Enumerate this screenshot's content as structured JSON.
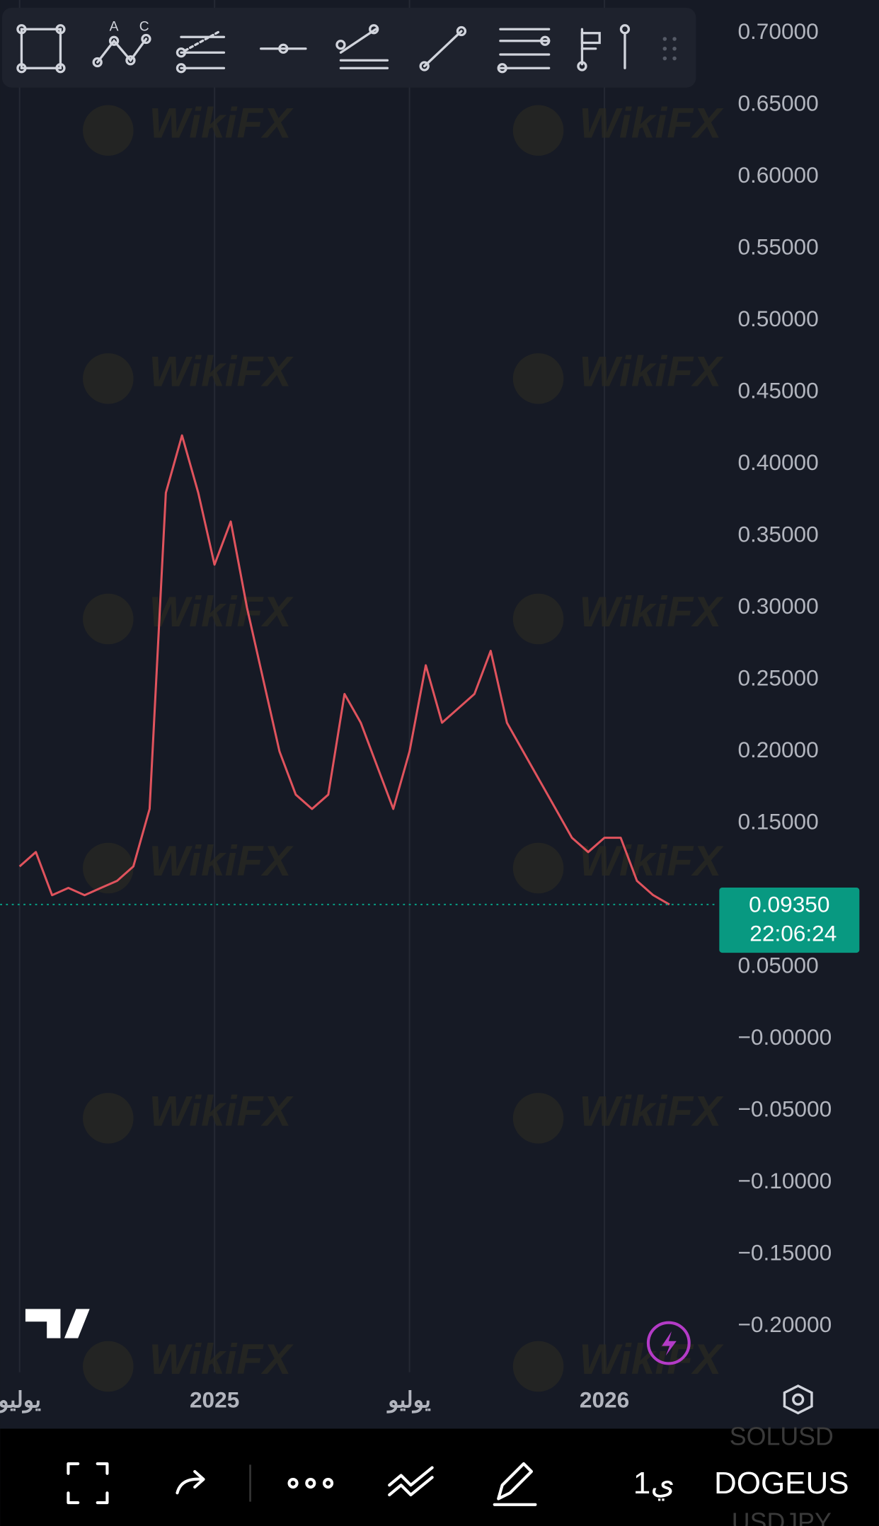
{
  "chart_data": {
    "type": "line",
    "categories": [
      "يوليو",
      null,
      null,
      null,
      null,
      null,
      null,
      null,
      null,
      null,
      null,
      null,
      "2025",
      null,
      null,
      null,
      null,
      null,
      null,
      null,
      null,
      null,
      null,
      null,
      "يوليو",
      null,
      null,
      null,
      null,
      null,
      null,
      null,
      null,
      null,
      null,
      null,
      "2026",
      null,
      null,
      null,
      null
    ],
    "series": [
      {
        "color": "#e0535d",
        "values": [
          0.12,
          0.13,
          0.1,
          0.105,
          0.1,
          0.105,
          0.11,
          0.12,
          0.16,
          0.38,
          0.42,
          0.38,
          0.33,
          0.36,
          0.3,
          0.25,
          0.2,
          0.17,
          0.16,
          0.17,
          0.24,
          0.22,
          0.19,
          0.16,
          0.2,
          0.26,
          0.22,
          0.23,
          0.24,
          0.27,
          0.22,
          0.2,
          0.18,
          0.16,
          0.14,
          0.13,
          0.14,
          0.14,
          0.11,
          0.1,
          0.0935
        ]
      }
    ],
    "ylim": [
      -0.232,
      0.723
    ],
    "yticks": [
      {
        "value": 0.7,
        "label": "0.70000"
      },
      {
        "value": 0.65,
        "label": "0.65000"
      },
      {
        "value": 0.6,
        "label": "0.60000"
      },
      {
        "value": 0.55,
        "label": "0.55000"
      },
      {
        "value": 0.5,
        "label": "0.50000"
      },
      {
        "value": 0.45,
        "label": "0.45000"
      },
      {
        "value": 0.4,
        "label": "0.40000"
      },
      {
        "value": 0.35,
        "label": "0.35000"
      },
      {
        "value": 0.3,
        "label": "0.30000"
      },
      {
        "value": 0.25,
        "label": "0.25000"
      },
      {
        "value": 0.2,
        "label": "0.20000"
      },
      {
        "value": 0.15,
        "label": "0.15000"
      },
      {
        "value": 0.05,
        "label": "0.05000"
      },
      {
        "value": 0,
        "label": "−0.00000"
      },
      {
        "value": -0.05,
        "label": "−0.05000"
      },
      {
        "value": -0.1,
        "label": "−0.10000"
      },
      {
        "value": -0.15,
        "label": "−0.15000"
      },
      {
        "value": -0.2,
        "label": "−0.20000"
      }
    ],
    "grid": true
  },
  "price_label": {
    "price": "0.09350",
    "timer": "22:06:24"
  },
  "toolbar": {
    "letters": [
      "A",
      "C"
    ]
  },
  "watermark": "WikiFX",
  "bottom_bar": {
    "interval": "1ي",
    "symbol": "DOGEUS",
    "symbol_above": "SOLUSD",
    "symbol_below": "USDJPY"
  }
}
